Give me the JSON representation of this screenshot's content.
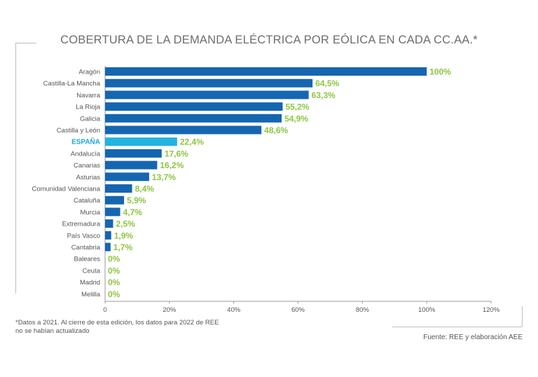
{
  "title": "COBERTURA DE LA DEMANDA ELÉCTRICA POR EÓLICA EN CADA CC.AA.*",
  "footnote": "*Datos a 2021. Al cierre de esta edición, los datos para 2022 de REE no se habían actualizado",
  "source": "Fuente: REE y elaboración AEE",
  "colors": {
    "bar": "#1566b0",
    "highlight_bar": "#22b3e0",
    "highlight_label": "#1aa9d8",
    "value_label": "#8dc63f",
    "category_label": "#555555",
    "axis": "#999999",
    "frame": "#bdbdbd"
  },
  "chart_data": {
    "type": "bar",
    "orientation": "horizontal",
    "title": "COBERTURA DE LA DEMANDA ELÉCTRICA POR EÓLICA EN CADA CC.AA.*",
    "xlim": [
      0,
      120
    ],
    "xticks": [
      0,
      20,
      40,
      60,
      80,
      100,
      120
    ],
    "xtick_labels": [
      "0",
      "20%",
      "40%",
      "60%",
      "80%",
      "100%",
      "120%"
    ],
    "highlight": "ESPAÑA",
    "categories": [
      "Aragón",
      "Castilla-La Mancha",
      "Navarra",
      "La Rioja",
      "Galicia",
      "Castilla y León",
      "ESPAÑA",
      "Andalucía",
      "Canarias",
      "Asturias",
      "Comunidad Valenciana",
      "Cataluña",
      "Murcia",
      "Extremadura",
      "País Vasco",
      "Cantabria",
      "Baleares",
      "Ceuta",
      "Madrid",
      "Melilla"
    ],
    "values": [
      100,
      64.5,
      63.3,
      55.2,
      54.9,
      48.6,
      22.4,
      17.6,
      16.2,
      13.7,
      8.4,
      5.9,
      4.7,
      2.5,
      1.9,
      1.7,
      0,
      0,
      0,
      0
    ],
    "value_labels": [
      "100%",
      "64,5%",
      "63,3%",
      "55,2%",
      "54,9%",
      "48,6%",
      "22,4%",
      "17,6%",
      "16,2%",
      "13,7%",
      "8,4%",
      "5,9%",
      "4,7%",
      "2,5%",
      "1,9%",
      "1,7%",
      "0%",
      "0%",
      "0%",
      "0%"
    ]
  }
}
